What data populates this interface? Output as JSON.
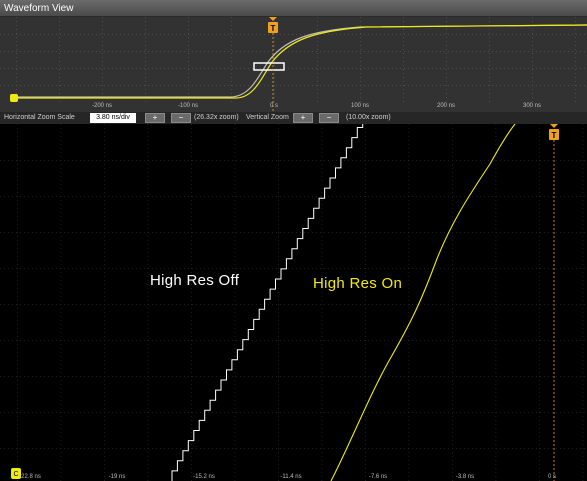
{
  "window": {
    "title": "Waveform View"
  },
  "overview": {
    "trigger_marker": "T",
    "time_labels": [
      "-200 ns",
      "-100 ns",
      "0 s",
      "100 ns",
      "200 ns",
      "300 ns"
    ],
    "channel_marker_icon": "channel-1-marker"
  },
  "zoom_controls": {
    "horizontal_label": "Horizontal Zoom Scale",
    "horizontal_value": "3.80 ns/div",
    "plus_label": "+",
    "minus_label": "−",
    "horizontal_factor": "(26.32x zoom)",
    "vertical_label": "Vertical Zoom",
    "vertical_factor": "(10.00x zoom)"
  },
  "main": {
    "trigger_marker": "T",
    "time_labels": [
      "-22.8 ns",
      "-19 ns",
      "-15.2 ns",
      "-11.4 ns",
      "-7.6 ns",
      "-3.8 ns",
      "0 s"
    ],
    "label_off": "High Res Off",
    "label_on": "High Res On",
    "channel_marker": "C"
  },
  "colors": {
    "trace_high_res_off": "#ffffff",
    "trace_high_res_on": "#f0ea10",
    "trigger": "#f0a020",
    "background": "#000000",
    "overview_background": "#323232"
  }
}
